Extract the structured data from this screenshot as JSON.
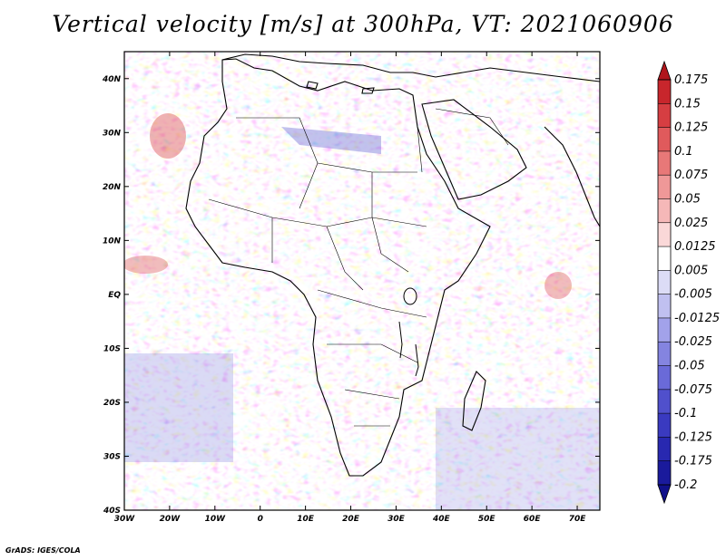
{
  "title": "Vertical velocity [m/s] at 300hPa, VT: 2021060906",
  "footer": "GrADS: IGES/COLA",
  "map": {
    "lon_range": [
      -30,
      75
    ],
    "lat_range": [
      -40,
      45
    ],
    "lon_ticks": [
      "30W",
      "20W",
      "10W",
      "0",
      "10E",
      "20E",
      "30E",
      "40E",
      "50E",
      "60E",
      "70E"
    ],
    "lat_ticks": [
      "40N",
      "30N",
      "20N",
      "10N",
      "EQ",
      "10S",
      "20S",
      "30S",
      "40S"
    ],
    "field": "vertical velocity, shaded blue (negative) to red (positive)"
  },
  "colorbar": {
    "levels": [
      "0.175",
      "0.15",
      "0.125",
      "0.1",
      "0.075",
      "0.05",
      "0.025",
      "0.0125",
      "0.005",
      "-0.005",
      "-0.0125",
      "-0.025",
      "-0.05",
      "-0.075",
      "-0.1",
      "-0.125",
      "-0.175",
      "-0.2"
    ],
    "colors": [
      "#b0161c",
      "#c8262c",
      "#d63e42",
      "#e05a5c",
      "#e87878",
      "#ef9898",
      "#f5b8b8",
      "#fad8d8",
      "#ffffff",
      "#dcdcf6",
      "#c0c0f0",
      "#a2a2ea",
      "#8484e0",
      "#6a6ad8",
      "#5050cc",
      "#3a3ac0",
      "#2828b0",
      "#1a1a9c",
      "#10108a"
    ]
  }
}
